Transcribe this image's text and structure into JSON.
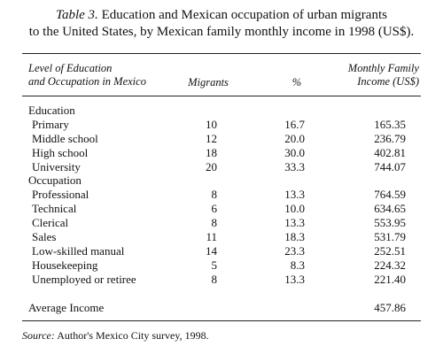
{
  "caption": {
    "number": "Table 3.",
    "line1_rest": " Education and Mexican occupation of urban migrants",
    "line2": "to the United States, by Mexican family monthly income in 1998 (US$)."
  },
  "headers": {
    "label_line1": "Level of Education",
    "label_line2": "and Occupation in Mexico",
    "migrants": "Migrants",
    "percent": "%",
    "income_line1": "Monthly Family",
    "income_line2": "Income (US$)"
  },
  "section_education": "Education",
  "education_rows": [
    {
      "label": "Primary",
      "migrants": "10",
      "percent": "16.7",
      "income": "165.35"
    },
    {
      "label": "Middle school",
      "migrants": "12",
      "percent": "20.0",
      "income": "236.79"
    },
    {
      "label": "High school",
      "migrants": "18",
      "percent": "30.0",
      "income": "402.81"
    },
    {
      "label": "University",
      "migrants": "20",
      "percent": "33.3",
      "income": "744.07"
    }
  ],
  "section_occupation": "Occupation",
  "occupation_rows": [
    {
      "label": "Professional",
      "migrants": "8",
      "percent": "13.3",
      "income": "764.59"
    },
    {
      "label": "Technical",
      "migrants": "6",
      "percent": "10.0",
      "income": "634.65"
    },
    {
      "label": "Clerical",
      "migrants": "8",
      "percent": "13.3",
      "income": "553.95"
    },
    {
      "label": "Sales",
      "migrants": "11",
      "percent": "18.3",
      "income": "531.79"
    },
    {
      "label": "Low-skilled manual",
      "migrants": "14",
      "percent": "23.3",
      "income": "252.51"
    },
    {
      "label": "Housekeeping",
      "migrants": "5",
      "percent": "8.3",
      "income": "224.32"
    },
    {
      "label": "Unemployed or retiree",
      "migrants": "8",
      "percent": "13.3",
      "income": "221.40"
    }
  ],
  "average": {
    "label": "Average Income",
    "income": "457.86"
  },
  "source": {
    "label": "Source:",
    "text": " Author's Mexico City survey, 1998."
  }
}
